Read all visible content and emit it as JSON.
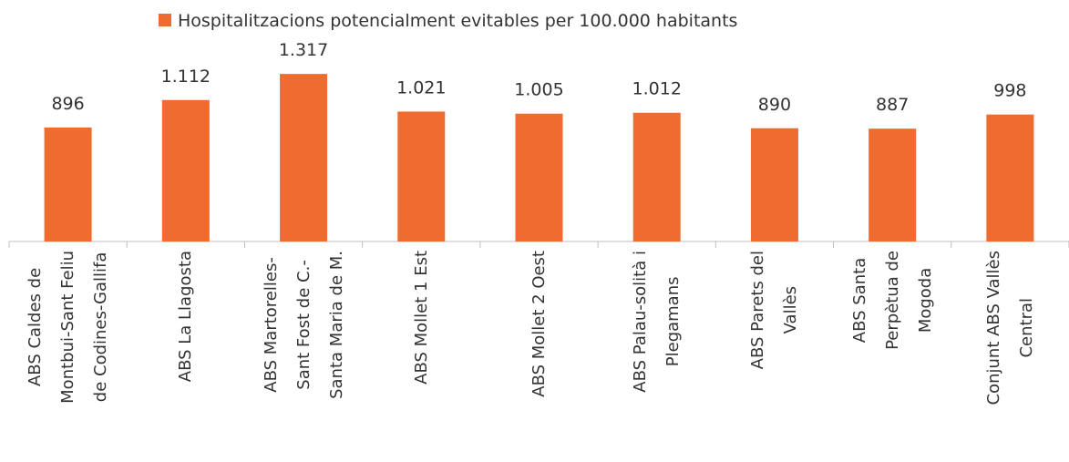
{
  "chart_data": {
    "type": "bar",
    "categories": [
      "ABS Caldes de\nMontbui-Sant Feliu\nde Codines-Gallifa",
      "ABS La Llagosta",
      "ABS Martorelles-\nSant Fost de C.-\nSanta Maria de M.",
      "ABS Mollet 1 Est",
      "ABS Mollet 2 Oest",
      "ABS Palau-solità i\nPlegamans",
      "ABS Parets del\nVallès",
      "ABS Santa\nPerpètua de\nMogoda",
      "Conjunt ABS Vallès\nCentral"
    ],
    "series": [
      {
        "name": "Hospitalitzacions potencialment evitables per 100.000 habitants",
        "color": "#f06b2f",
        "values": [
          896,
          1112,
          1317,
          1021,
          1005,
          1012,
          890,
          887,
          998
        ],
        "value_labels": [
          "896",
          "1.112",
          "1.317",
          "1.021",
          "1.005",
          "1.012",
          "890",
          "887",
          "998"
        ]
      }
    ],
    "legend": "top"
  }
}
